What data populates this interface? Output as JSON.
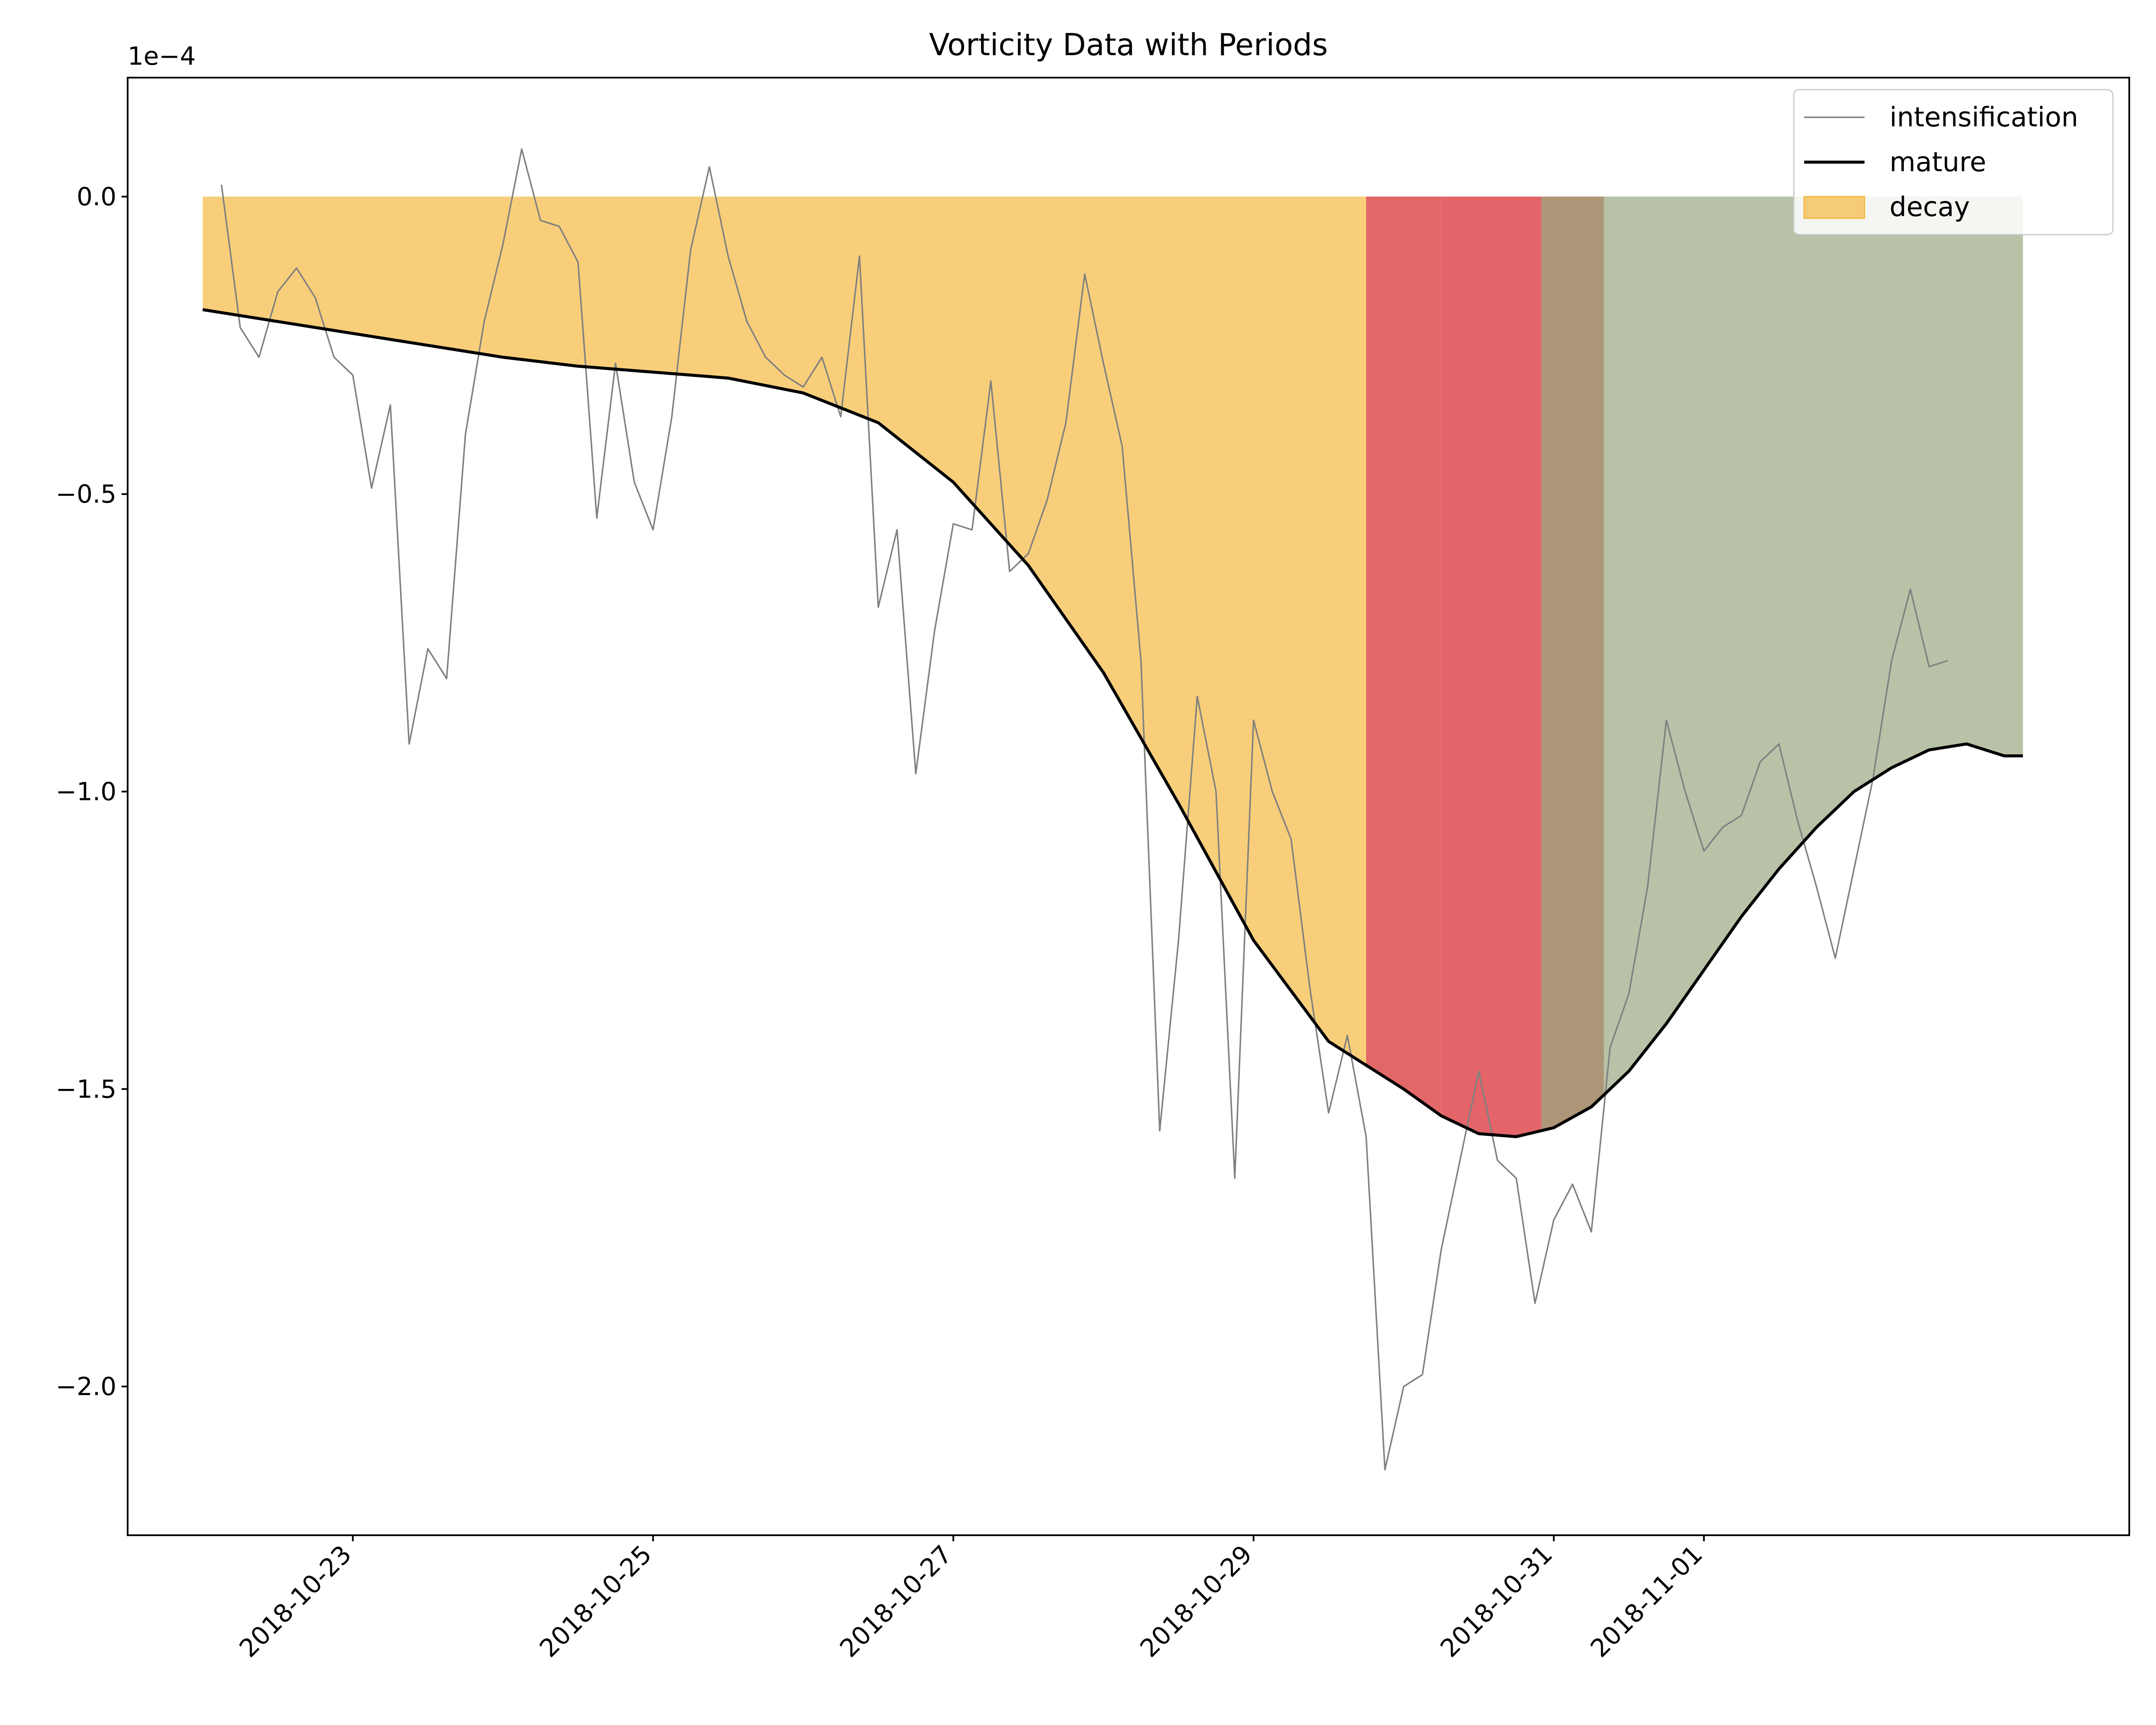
{
  "chart_data": {
    "type": "line",
    "title": "Vorticity Data with Periods",
    "xlabel": "",
    "ylabel": "",
    "y_offset_label": "1e−4",
    "y_scale_factor": 0.0001,
    "xlim": [
      "2018-10-21 12:00",
      "2018-11-03 20:00"
    ],
    "ylim": [
      -2.25,
      0.2
    ],
    "x_ticks": [
      {
        "date": "2018-10-23 00:00",
        "label": "2018-10-23"
      },
      {
        "date": "2018-10-25 00:00",
        "label": "2018-10-25"
      },
      {
        "date": "2018-10-27 00:00",
        "label": "2018-10-27"
      },
      {
        "date": "2018-10-29 00:00",
        "label": "2018-10-29"
      },
      {
        "date": "2018-10-31 00:00",
        "label": "2018-10-31"
      },
      {
        "date": "2018-11-01 00:00",
        "label": "2018-11-01"
      }
    ],
    "y_ticks": [
      {
        "value": 0.0,
        "label": "0.0"
      },
      {
        "value": -0.5,
        "label": "−0.5"
      },
      {
        "value": -1.0,
        "label": "−1.0"
      },
      {
        "value": -1.5,
        "label": "−1.5"
      },
      {
        "value": -2.0,
        "label": "−2.0"
      }
    ],
    "grid": false,
    "legend_position": "top-right",
    "series": [
      {
        "name": "intensification",
        "kind": "line",
        "color": "#808080",
        "x": [
          "2018-10-22 03:00",
          "2018-10-22 06:00",
          "2018-10-22 09:00",
          "2018-10-22 12:00",
          "2018-10-22 15:00",
          "2018-10-22 18:00",
          "2018-10-22 21:00",
          "2018-10-23 00:00",
          "2018-10-23 03:00",
          "2018-10-23 06:00",
          "2018-10-23 09:00",
          "2018-10-23 12:00",
          "2018-10-23 15:00",
          "2018-10-23 18:00",
          "2018-10-23 21:00",
          "2018-10-24 00:00",
          "2018-10-24 03:00",
          "2018-10-24 06:00",
          "2018-10-24 09:00",
          "2018-10-24 12:00",
          "2018-10-24 15:00",
          "2018-10-24 18:00",
          "2018-10-24 21:00",
          "2018-10-25 00:00",
          "2018-10-25 03:00",
          "2018-10-25 06:00",
          "2018-10-25 09:00",
          "2018-10-25 12:00",
          "2018-10-25 15:00",
          "2018-10-25 18:00",
          "2018-10-25 21:00",
          "2018-10-26 00:00",
          "2018-10-26 03:00",
          "2018-10-26 06:00",
          "2018-10-26 09:00",
          "2018-10-26 12:00",
          "2018-10-26 15:00",
          "2018-10-26 18:00",
          "2018-10-26 21:00",
          "2018-10-27 00:00",
          "2018-10-27 03:00",
          "2018-10-27 06:00",
          "2018-10-27 09:00",
          "2018-10-27 12:00",
          "2018-10-27 15:00",
          "2018-10-27 18:00",
          "2018-10-27 21:00",
          "2018-10-28 00:00",
          "2018-10-28 03:00",
          "2018-10-28 06:00",
          "2018-10-28 09:00",
          "2018-10-28 12:00",
          "2018-10-28 15:00",
          "2018-10-28 18:00",
          "2018-10-28 21:00",
          "2018-10-29 00:00",
          "2018-10-29 03:00",
          "2018-10-29 06:00",
          "2018-10-29 09:00",
          "2018-10-29 12:00",
          "2018-10-29 15:00",
          "2018-10-29 18:00",
          "2018-10-29 21:00",
          "2018-10-30 00:00",
          "2018-10-30 03:00",
          "2018-10-30 06:00",
          "2018-10-30 09:00",
          "2018-10-30 12:00",
          "2018-10-30 15:00",
          "2018-10-30 18:00",
          "2018-10-30 21:00",
          "2018-10-31 00:00",
          "2018-10-31 03:00",
          "2018-10-31 06:00",
          "2018-10-31 09:00",
          "2018-10-31 12:00",
          "2018-10-31 15:00",
          "2018-10-31 18:00",
          "2018-10-31 21:00",
          "2018-11-01 00:00",
          "2018-11-01 03:00",
          "2018-11-01 06:00",
          "2018-11-01 09:00",
          "2018-11-01 12:00",
          "2018-11-01 15:00",
          "2018-11-01 18:00",
          "2018-11-01 21:00",
          "2018-11-02 00:00",
          "2018-11-02 03:00",
          "2018-11-02 06:00",
          "2018-11-02 09:00",
          "2018-11-02 12:00",
          "2018-11-02 15:00"
        ],
        "values": [
          0.02,
          -0.22,
          -0.27,
          -0.16,
          -0.12,
          -0.17,
          -0.27,
          -0.3,
          -0.49,
          -0.35,
          -0.92,
          -0.76,
          -0.81,
          -0.4,
          -0.21,
          -0.08,
          0.08,
          -0.04,
          -0.05,
          -0.11,
          -0.54,
          -0.28,
          -0.48,
          -0.56,
          -0.37,
          -0.09,
          0.05,
          -0.1,
          -0.21,
          -0.27,
          -0.3,
          -0.32,
          -0.27,
          -0.37,
          -0.1,
          -0.69,
          -0.56,
          -0.97,
          -0.73,
          -0.55,
          -0.56,
          -0.31,
          -0.63,
          -0.6,
          -0.51,
          -0.38,
          -0.13,
          -0.28,
          -0.42,
          -0.78,
          -1.57,
          -1.25,
          -0.84,
          -1.0,
          -1.65,
          -0.88,
          -1.0,
          -1.08,
          -1.33,
          -1.54,
          -1.41,
          -1.58,
          -2.14,
          -2.0,
          -1.98,
          -1.77,
          -1.62,
          -1.47,
          -1.62,
          -1.65,
          -1.86,
          -1.72,
          -1.66,
          -1.74,
          -1.43,
          -1.34,
          -1.16,
          -0.88,
          -1.0,
          -1.1,
          -1.06,
          -1.04,
          -0.95,
          -0.92,
          -1.05,
          -1.16,
          -1.28,
          -1.13,
          -0.98,
          -0.78,
          -0.66,
          -0.79,
          -0.78
        ]
      },
      {
        "name": "mature",
        "kind": "line",
        "color": "#000000",
        "x": [
          "2018-10-22 00:00",
          "2018-10-22 12:00",
          "2018-10-23 00:00",
          "2018-10-23 12:00",
          "2018-10-24 00:00",
          "2018-10-24 12:00",
          "2018-10-25 00:00",
          "2018-10-25 12:00",
          "2018-10-26 00:00",
          "2018-10-26 12:00",
          "2018-10-27 00:00",
          "2018-10-27 12:00",
          "2018-10-28 00:00",
          "2018-10-28 12:00",
          "2018-10-29 00:00",
          "2018-10-29 12:00",
          "2018-10-30 00:00",
          "2018-10-30 06:00",
          "2018-10-30 12:00",
          "2018-10-30 18:00",
          "2018-10-31 00:00",
          "2018-10-31 06:00",
          "2018-10-31 12:00",
          "2018-10-31 18:00",
          "2018-11-01 00:00",
          "2018-11-01 06:00",
          "2018-11-01 12:00",
          "2018-11-01 18:00",
          "2018-11-02 00:00",
          "2018-11-02 06:00",
          "2018-11-02 12:00",
          "2018-11-02 18:00",
          "2018-11-03 00:00",
          "2018-11-03 03:00"
        ],
        "values": [
          -0.19,
          -0.21,
          -0.23,
          -0.25,
          -0.27,
          -0.285,
          -0.295,
          -0.305,
          -0.33,
          -0.38,
          -0.48,
          -0.62,
          -0.8,
          -1.02,
          -1.25,
          -1.42,
          -1.5,
          -1.545,
          -1.575,
          -1.58,
          -1.565,
          -1.53,
          -1.47,
          -1.39,
          -1.3,
          -1.21,
          -1.13,
          -1.06,
          -1.0,
          -0.96,
          -0.93,
          -0.92,
          -0.94,
          -0.94
        ]
      }
    ],
    "periods": [
      {
        "name": "decay",
        "color": "#f5b942",
        "opacity": 0.7,
        "start": "2018-10-22 00:00",
        "end": "2018-10-29 18:00"
      },
      {
        "name": "",
        "color": "#d62728",
        "opacity": 0.7,
        "start": "2018-10-29 18:00",
        "end": "2018-10-30 06:00"
      },
      {
        "name": "",
        "color": "#e3656a",
        "opacity": 1.0,
        "start": "2018-10-30 06:00",
        "end": "2018-10-30 22:00"
      },
      {
        "name": "",
        "color": "#ad9577",
        "opacity": 1.0,
        "start": "2018-10-30 22:00",
        "end": "2018-10-31 08:00"
      },
      {
        "name": "",
        "color": "#b7c2a7",
        "opacity": 1.0,
        "start": "2018-10-31 08:00",
        "end": "2018-11-03 03:00"
      }
    ],
    "legend": [
      {
        "label": "intensification",
        "kind": "thin-line",
        "color": "#808080"
      },
      {
        "label": "mature",
        "kind": "line",
        "color": "#000000"
      },
      {
        "label": "decay",
        "kind": "patch",
        "color": "#f5b942"
      }
    ]
  }
}
